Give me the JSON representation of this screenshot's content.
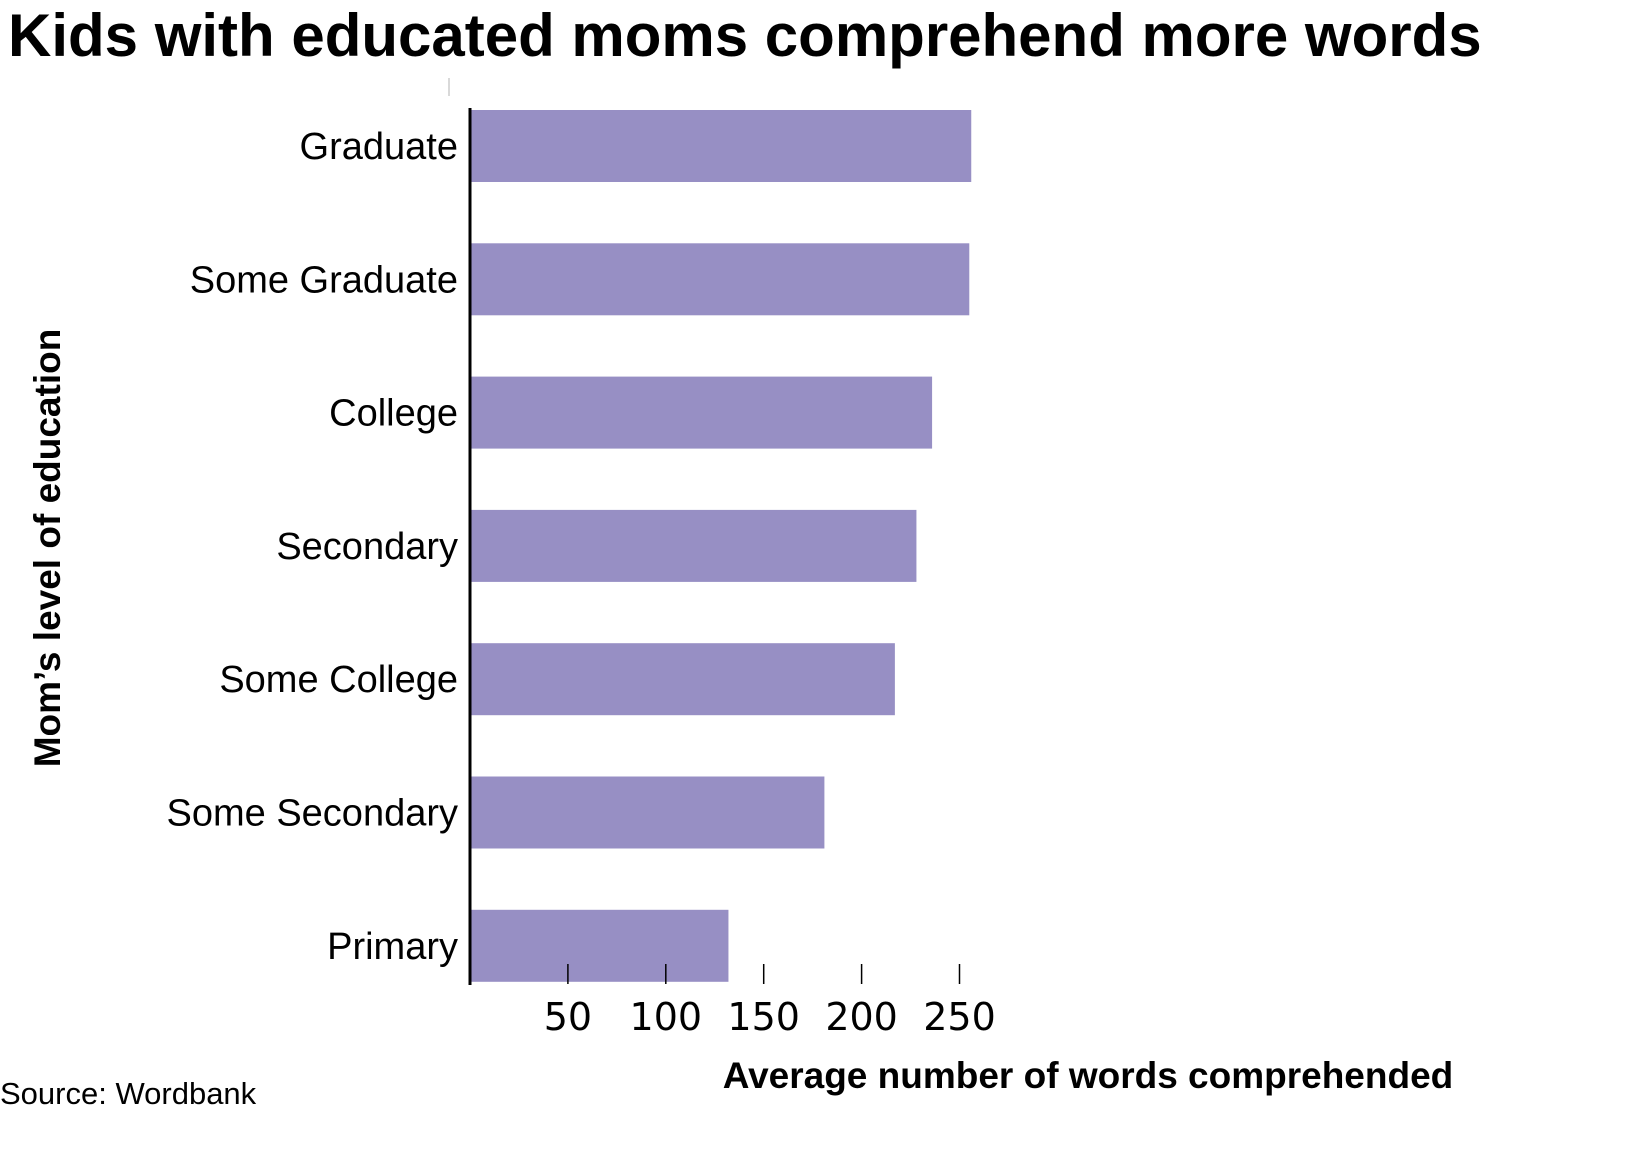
{
  "chart_data": {
    "type": "bar",
    "orientation": "horizontal",
    "title": "Kids with educated moms comprehend more words",
    "xlabel": "Average number of words comprehended",
    "ylabel": "Mom’s level of education",
    "source": "Source: Wordbank",
    "categories": [
      "Graduate",
      "Some Graduate",
      "College",
      "Secondary",
      "Some College",
      "Some Secondary",
      "Primary"
    ],
    "values": [
      256,
      255,
      236,
      228,
      217,
      181,
      132
    ],
    "xticks": [
      50,
      100,
      150,
      200,
      250
    ],
    "xlim": [
      0,
      280
    ],
    "bar_color": "#978fc4",
    "grid": false
  }
}
